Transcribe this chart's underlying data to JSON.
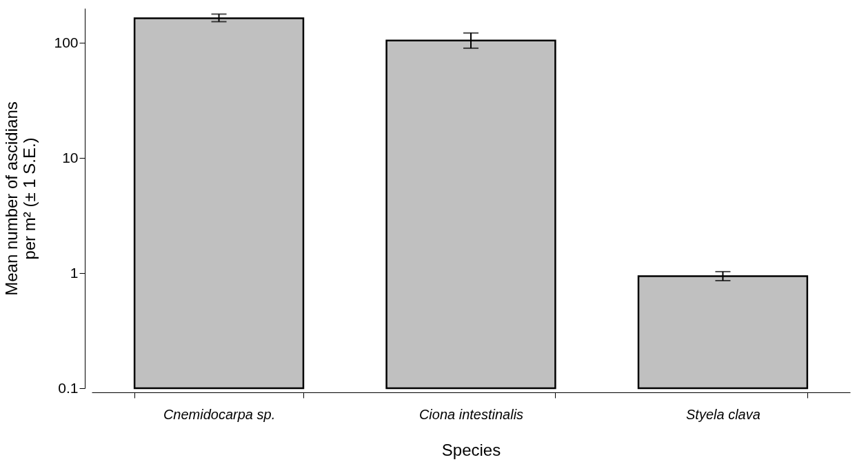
{
  "chart_data": {
    "type": "bar",
    "xlabel": "Species",
    "ylabel": "Mean number of ascidians per m² (± 1 S.E.)",
    "categories": [
      "Cnemidocarpa sp.",
      "Ciona intestinalis",
      "Styela clava"
    ],
    "values": [
      164,
      105,
      0.94
    ],
    "errors": [
      [
        153,
        178
      ],
      [
        90,
        122
      ],
      [
        0.86,
        1.03
      ]
    ],
    "color": "#c0c0c0",
    "log": "y",
    "ylim": [
      0.1,
      200
    ],
    "yticks": [
      0.1,
      1,
      10,
      100
    ],
    "grid": false
  }
}
